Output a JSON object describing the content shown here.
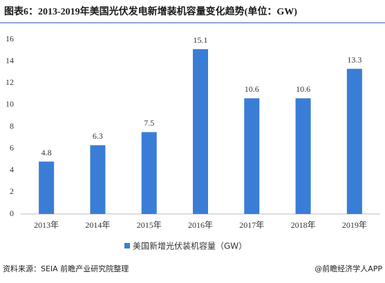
{
  "chart_data": {
    "type": "bar",
    "title": "图表6：2013-2019年美国光伏发电新增装机容量变化趋势(单位：GW)",
    "categories": [
      "2013年",
      "2014年",
      "2015年",
      "2016年",
      "2017年",
      "2018年",
      "2019年"
    ],
    "series": [
      {
        "name": "美国新增光伏装机容量（GW）",
        "color": "#3a7dd6",
        "values": [
          4.8,
          6.3,
          7.5,
          15.1,
          10.6,
          10.6,
          13.3
        ]
      }
    ],
    "ylim": [
      0,
      16
    ],
    "yticks": [
      0,
      2,
      4,
      6,
      8,
      10,
      12,
      14,
      16
    ],
    "grid": false,
    "source": "资料来源：SEIA 前瞻产业研究院整理",
    "credit": "@前瞻经济学人APP"
  }
}
